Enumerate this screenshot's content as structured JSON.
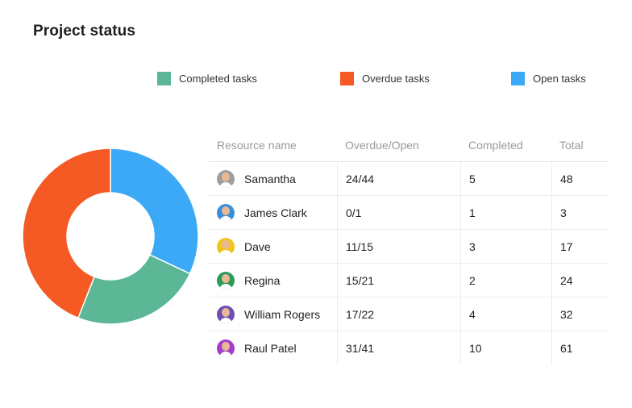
{
  "title": "Project status",
  "legend": [
    {
      "label": "Completed tasks",
      "color": "#5BB795"
    },
    {
      "label": "Overdue tasks",
      "color": "#F55A24"
    },
    {
      "label": "Open tasks",
      "color": "#3BA9F5"
    }
  ],
  "table": {
    "headers": [
      "Resource name",
      "Overdue/Open",
      "Completed",
      "Total"
    ],
    "rows": [
      {
        "name": "Samantha",
        "overdue_open": "24/44",
        "completed": "5",
        "total": "48",
        "avatar_color": "#9e9e9e"
      },
      {
        "name": "James Clark",
        "overdue_open": "0/1",
        "completed": "1",
        "total": "3",
        "avatar_color": "#3a8fdc"
      },
      {
        "name": "Dave",
        "overdue_open": "11/15",
        "completed": "3",
        "total": "17",
        "avatar_color": "#f0c419"
      },
      {
        "name": "Regina",
        "overdue_open": "15/21",
        "completed": "2",
        "total": "24",
        "avatar_color": "#2e9a5a"
      },
      {
        "name": "William Rogers",
        "overdue_open": "17/22",
        "completed": "4",
        "total": "32",
        "avatar_color": "#6c4fb3"
      },
      {
        "name": "Raul Patel",
        "overdue_open": "31/41",
        "completed": "10",
        "total": "61",
        "avatar_color": "#a43ec8"
      }
    ]
  },
  "chart_data": {
    "type": "pie",
    "donut": true,
    "series": [
      {
        "name": "Open tasks",
        "value": 32,
        "color": "#3BA9F5"
      },
      {
        "name": "Completed tasks",
        "value": 24,
        "color": "#5BB795"
      },
      {
        "name": "Overdue tasks",
        "value": 44,
        "color": "#F55A24"
      }
    ]
  }
}
